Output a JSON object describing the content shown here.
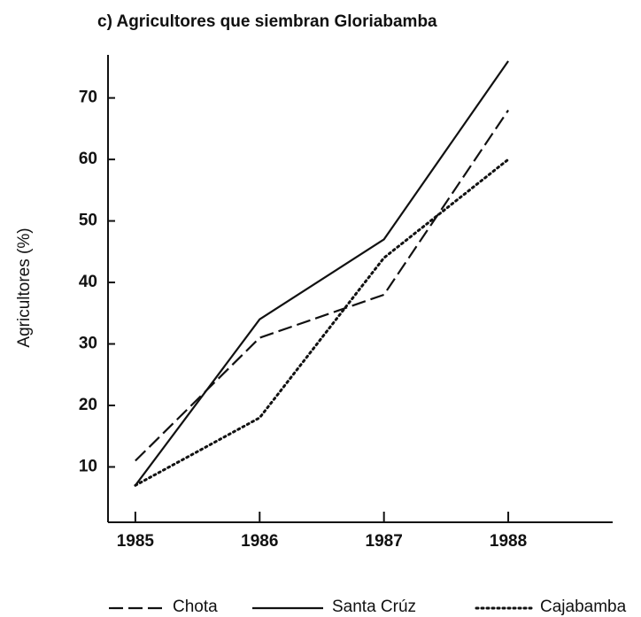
{
  "chart_data": {
    "type": "line",
    "title": "c) Agricultores que siembran Gloriabamba",
    "y_label": "Agricultores (%)",
    "x": [
      1985,
      1986,
      1987,
      1988
    ],
    "xlim": [
      1984.78,
      1988.84
    ],
    "xticks": [
      1985,
      1986,
      1987,
      1988
    ],
    "ylim": [
      1,
      77
    ],
    "yticks": [
      10,
      20,
      30,
      40,
      50,
      60,
      70
    ],
    "series": [
      {
        "name": "Chota",
        "color": "#111111",
        "style": "dashed",
        "values": [
          11,
          31,
          38,
          68
        ]
      },
      {
        "name": "Santa Crúz",
        "color": "#111111",
        "style": "solid",
        "values": [
          7,
          34,
          47,
          76
        ]
      },
      {
        "name": "Cajabamba",
        "color": "#111111",
        "style": "dotted",
        "values": [
          7,
          18,
          44,
          60
        ]
      }
    ],
    "legend": "bottom"
  }
}
